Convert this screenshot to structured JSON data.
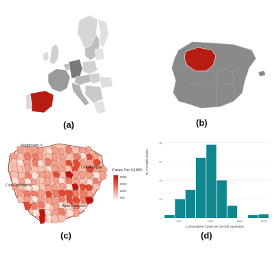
{
  "panels": [
    {
      "id": "a",
      "label": "(a)"
    },
    {
      "id": "b",
      "label": "(b)"
    },
    {
      "id": "c",
      "label": "(c)"
    },
    {
      "id": "d",
      "label": "(d)"
    }
  ],
  "colors": {
    "highlight": "#b81d12",
    "europe_grey": "#c9c9c9",
    "spain_grey": "#8a8a8a",
    "histogram_bar": "#10868f"
  },
  "map_c": {
    "labels": [
      "Ponferrada II",
      "Las Huelgas",
      "Casa del Barco",
      "Ávila Estación"
    ],
    "legend": {
      "title": "Cases Per 10,000",
      "ticks": [
        "3000",
        "2000",
        "1000",
        "500"
      ]
    }
  },
  "chart_data": {
    "type": "bar",
    "title": "",
    "xlabel": "Cummulative Cases per 10,000 population",
    "ylabel": "Nr of Health Zones",
    "x_ticks": [
      "500",
      "1000",
      "1500",
      "2000"
    ],
    "y_ticks": [
      "0",
      "20",
      "40",
      "60",
      "80"
    ],
    "ylim": [
      0,
      85
    ],
    "values": [
      3,
      20,
      30,
      64,
      78,
      40,
      13,
      0,
      3,
      4
    ],
    "color": "#10868f"
  }
}
